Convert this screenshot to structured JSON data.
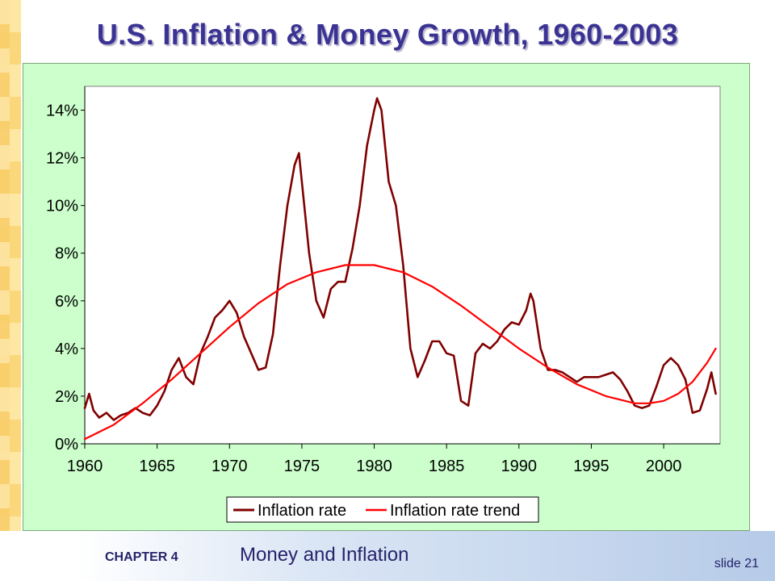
{
  "slide": {
    "title": "U.S. Inflation & Money Growth, 1960-2003",
    "chapter_label": "CHAPTER 4",
    "chapter_title": "Money and Inflation",
    "slide_number": "slide 21"
  },
  "colors": {
    "title": "#3a3393",
    "panel_bg": "#ccffcc",
    "inflation_rate": "#800000",
    "inflation_trend": "#ff0000"
  },
  "chart_data": {
    "type": "line",
    "title": "",
    "xlabel": "",
    "ylabel": "",
    "xlim": [
      1960,
      2003.9
    ],
    "ylim": [
      0,
      0.15
    ],
    "x_ticks": [
      1960,
      1965,
      1970,
      1975,
      1980,
      1985,
      1990,
      1995,
      2000
    ],
    "x_tick_labels": [
      "1960",
      "1965",
      "1970",
      "1975",
      "1980",
      "1985",
      "1990",
      "1995",
      "2000"
    ],
    "y_ticks": [
      0,
      0.02,
      0.04,
      0.06,
      0.08,
      0.1,
      0.12,
      0.14
    ],
    "y_tick_labels": [
      "0%",
      "2%",
      "4%",
      "6%",
      "8%",
      "10%",
      "12%",
      "14%"
    ],
    "grid": false,
    "legend_position": "bottom",
    "series": [
      {
        "name": "Inflation rate",
        "color": "#800000",
        "x": [
          1960.0,
          1960.3,
          1960.6,
          1961.0,
          1961.5,
          1962.0,
          1962.5,
          1963.0,
          1963.5,
          1964.0,
          1964.5,
          1965.0,
          1965.5,
          1966.0,
          1966.5,
          1967.0,
          1967.5,
          1968.0,
          1968.5,
          1969.0,
          1969.5,
          1970.0,
          1970.5,
          1971.0,
          1971.5,
          1972.0,
          1972.5,
          1973.0,
          1973.5,
          1974.0,
          1974.5,
          1974.8,
          1975.0,
          1975.5,
          1976.0,
          1976.5,
          1977.0,
          1977.5,
          1978.0,
          1978.5,
          1979.0,
          1979.5,
          1980.0,
          1980.2,
          1980.5,
          1981.0,
          1981.5,
          1982.0,
          1982.5,
          1983.0,
          1983.5,
          1984.0,
          1984.5,
          1985.0,
          1985.5,
          1986.0,
          1986.5,
          1987.0,
          1987.5,
          1988.0,
          1988.5,
          1989.0,
          1989.5,
          1990.0,
          1990.5,
          1990.8,
          1991.0,
          1991.5,
          1992.0,
          1992.5,
          1993.0,
          1993.5,
          1994.0,
          1994.5,
          1995.0,
          1995.5,
          1996.0,
          1996.5,
          1997.0,
          1997.5,
          1998.0,
          1998.5,
          1999.0,
          1999.5,
          2000.0,
          2000.5,
          2001.0,
          2001.5,
          2002.0,
          2002.5,
          2003.0,
          2003.3,
          2003.6
        ],
        "y": [
          0.015,
          0.021,
          0.014,
          0.011,
          0.013,
          0.01,
          0.012,
          0.013,
          0.015,
          0.013,
          0.012,
          0.016,
          0.022,
          0.031,
          0.036,
          0.028,
          0.025,
          0.038,
          0.045,
          0.053,
          0.056,
          0.06,
          0.055,
          0.045,
          0.038,
          0.031,
          0.032,
          0.046,
          0.075,
          0.1,
          0.117,
          0.122,
          0.11,
          0.08,
          0.06,
          0.053,
          0.065,
          0.068,
          0.068,
          0.082,
          0.1,
          0.125,
          0.14,
          0.145,
          0.14,
          0.11,
          0.1,
          0.075,
          0.04,
          0.028,
          0.035,
          0.043,
          0.043,
          0.038,
          0.037,
          0.018,
          0.016,
          0.038,
          0.042,
          0.04,
          0.043,
          0.048,
          0.051,
          0.05,
          0.056,
          0.063,
          0.06,
          0.04,
          0.031,
          0.031,
          0.03,
          0.028,
          0.026,
          0.028,
          0.028,
          0.028,
          0.029,
          0.03,
          0.027,
          0.022,
          0.016,
          0.015,
          0.016,
          0.024,
          0.033,
          0.036,
          0.033,
          0.027,
          0.013,
          0.014,
          0.023,
          0.03,
          0.021
        ]
      },
      {
        "name": "Inflation rate trend",
        "color": "#ff0000",
        "x": [
          1960,
          1962,
          1964,
          1966,
          1968,
          1970,
          1972,
          1974,
          1976,
          1978,
          1979,
          1980,
          1982,
          1984,
          1986,
          1988,
          1990,
          1992,
          1994,
          1996,
          1998,
          1999,
          2000,
          2001,
          2002,
          2003,
          2003.6
        ],
        "y": [
          0.002,
          0.008,
          0.017,
          0.027,
          0.038,
          0.049,
          0.059,
          0.067,
          0.072,
          0.075,
          0.075,
          0.075,
          0.072,
          0.066,
          0.058,
          0.049,
          0.04,
          0.032,
          0.025,
          0.02,
          0.017,
          0.017,
          0.018,
          0.021,
          0.026,
          0.034,
          0.04
        ]
      }
    ]
  }
}
